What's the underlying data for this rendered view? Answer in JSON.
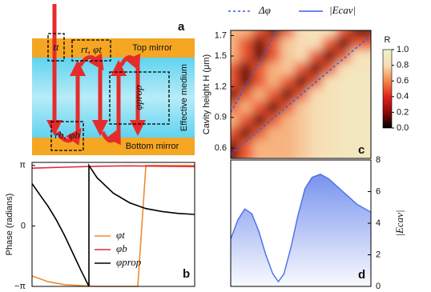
{
  "diagram": {
    "letter": "a",
    "top_mirror": "Top mirror",
    "bottom_mirror": "Bottom mirror",
    "medium": "Effective medium",
    "labels": [
      "tt",
      "rt, φt",
      "φprop",
      "rb, φb"
    ]
  },
  "chart_data": [
    {
      "type": "line",
      "letter": "b",
      "y_label": "Phase (radians)",
      "xlim": [
        0,
        10
      ],
      "ylim": [
        -3.14159,
        3.3
      ],
      "yticks": [
        {
          "value": 3.14159,
          "label": "π"
        },
        0,
        {
          "value": -3.14159,
          "label": "−π"
        }
      ],
      "series": [
        {
          "name": "φt",
          "color": "#f08a30",
          "x": [
            0,
            1,
            2,
            3,
            4,
            5,
            6,
            6.5,
            7,
            8,
            10
          ],
          "values": [
            -2.6,
            -2.9,
            -3.05,
            -3.1,
            -3.14,
            -3.14,
            -3.14,
            -3.14,
            3.14,
            3.14,
            3.14
          ]
        },
        {
          "name": "φb",
          "color": "#e02a3a",
          "x": [
            0,
            2,
            4,
            6,
            8,
            10
          ],
          "values": [
            3.0,
            3.05,
            3.1,
            3.12,
            3.1,
            3.08
          ]
        },
        {
          "name": "φprop",
          "color": "#000000",
          "x": [
            0,
            0.5,
            1,
            1.5,
            2,
            2.5,
            3,
            3.5,
            3.5,
            4,
            5,
            6,
            7,
            8,
            9,
            10
          ],
          "values": [
            2.2,
            1.6,
            1.0,
            0.3,
            -0.5,
            -1.4,
            -2.3,
            -3.14,
            3.14,
            2.5,
            1.7,
            1.2,
            0.9,
            0.75,
            0.65,
            0.6
          ]
        }
      ]
    },
    {
      "type": "heatmap",
      "letter": "c",
      "y_label": "Cavity height H (μm)",
      "xlim": [
        0,
        1
      ],
      "ylim": [
        0.5,
        1.75
      ],
      "yticks": [
        0.6,
        0.9,
        1.2,
        1.5,
        1.7
      ],
      "colorbar_title": "R",
      "clim": [
        0,
        1
      ],
      "colorscale": [
        "#000000",
        "#8c0a0a",
        "#e2231a",
        "#f3894a",
        "#f8dcb4",
        "#eef2c8"
      ],
      "cticks": [
        {
          "value": 0,
          "label": "0.0"
        },
        0.2,
        0.4,
        0.6,
        0.8,
        {
          "value": 1,
          "label": "1.0"
        }
      ],
      "z": [
        [
          0.7,
          0.7,
          0.5,
          0.15,
          0.5,
          0.8,
          0.85,
          0.85,
          0.5,
          0.15
        ],
        [
          0.7,
          0.5,
          0.15,
          0.5,
          0.75,
          0.8,
          0.85,
          0.5,
          0.15,
          0.5
        ],
        [
          0.7,
          0.5,
          0.15,
          0.5,
          0.75,
          0.8,
          0.5,
          0.15,
          0.5,
          0.85
        ],
        [
          0.5,
          0.15,
          0.5,
          0.7,
          0.75,
          0.5,
          0.15,
          0.5,
          0.85,
          0.88
        ],
        [
          0.5,
          0.15,
          0.5,
          0.7,
          0.5,
          0.15,
          0.5,
          0.85,
          0.88,
          0.9
        ],
        [
          0.15,
          0.5,
          0.7,
          0.5,
          0.15,
          0.5,
          0.8,
          0.85,
          0.88,
          0.9
        ],
        [
          0.5,
          0.7,
          0.5,
          0.15,
          0.5,
          0.75,
          0.8,
          0.85,
          0.88,
          0.9
        ],
        [
          0.7,
          0.5,
          0.15,
          0.5,
          0.7,
          0.75,
          0.8,
          0.85,
          0.88,
          0.9
        ],
        [
          0.5,
          0.15,
          0.5,
          0.7,
          0.7,
          0.75,
          0.8,
          0.85,
          0.88,
          0.9
        ],
        [
          0.15,
          0.5,
          0.7,
          0.7,
          0.7,
          0.75,
          0.8,
          0.85,
          0.88,
          0.9
        ]
      ],
      "series": [
        {
          "name": "Δφ",
          "color": "#3a5fe0",
          "dash": true,
          "x": [
            0,
            0.33,
            null,
            0,
            1
          ],
          "values": [
            0.95,
            1.75,
            null,
            0.54,
            1.7
          ]
        },
        {
          "name": "|Ecav|",
          "color": "#3a5fe0",
          "dash": false,
          "x": [],
          "values": []
        }
      ]
    },
    {
      "type": "area",
      "letter": "d",
      "y_label": "|Ecav|",
      "xlim": [
        0,
        1
      ],
      "ylim": [
        0,
        8
      ],
      "yticks": [
        0,
        2,
        4,
        6,
        8
      ],
      "color": "#4a6ee8",
      "x": [
        0,
        0.05,
        0.1,
        0.15,
        0.2,
        0.25,
        0.3,
        0.34,
        0.38,
        0.43,
        0.48,
        0.53,
        0.58,
        0.64,
        0.7,
        0.8,
        0.9,
        1.0
      ],
      "values": [
        3.0,
        4.2,
        4.9,
        4.6,
        3.5,
        2.0,
        0.8,
        0.3,
        0.8,
        2.5,
        4.5,
        6.2,
        6.9,
        7.1,
        6.8,
        6.0,
        5.2,
        4.7
      ]
    }
  ]
}
